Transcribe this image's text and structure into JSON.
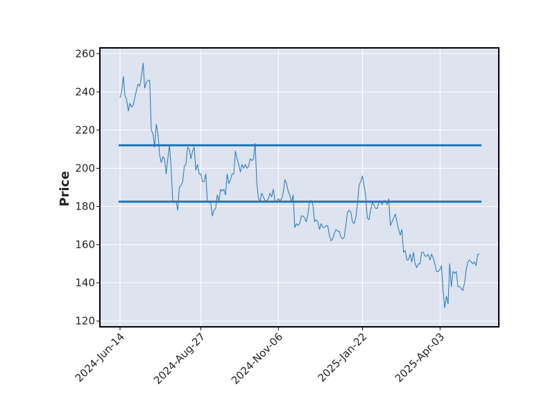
{
  "chart_data": {
    "type": "line",
    "title": "",
    "xlabel": "",
    "ylabel": "Price",
    "x_tick_labels": [
      "2024-Jun-14",
      "2024-Aug-27",
      "2024-Nov-06",
      "2025-Jan-22",
      "2025-Apr-03"
    ],
    "y_ticks": [
      120,
      140,
      160,
      180,
      200,
      220,
      240,
      260
    ],
    "ylim": [
      117,
      263
    ],
    "grid": true,
    "legend": "none",
    "colors": {
      "background": "#dde3ef",
      "grid": "#ffffff",
      "line": "#1f77b4",
      "frame": "#000000"
    },
    "series": [
      {
        "values": [
          237,
          240,
          248,
          238,
          236,
          230,
          234,
          232,
          233,
          237,
          241,
          244,
          243,
          248,
          255,
          242,
          245,
          246,
          246,
          220,
          218,
          211,
          223,
          218,
          207,
          203,
          206,
          205,
          197,
          205,
          212,
          200,
          183,
          182,
          183,
          178,
          190,
          191,
          193,
          201,
          202,
          211,
          210,
          205,
          209,
          211,
          199,
          202,
          197,
          197,
          193,
          193,
          197,
          183,
          182,
          182,
          175,
          178,
          179,
          186,
          183,
          189,
          188,
          189,
          186,
          197,
          192,
          194,
          197,
          197,
          209,
          205,
          202,
          198,
          202,
          200,
          202,
          200,
          201,
          205,
          204,
          205,
          213,
          192,
          184,
          183,
          187,
          185,
          183,
          183,
          184,
          187,
          185,
          189,
          183,
          182,
          184,
          183,
          184,
          187,
          194,
          192,
          188,
          186,
          182,
          186,
          169,
          171,
          170,
          171,
          175,
          175,
          174,
          172,
          176,
          183,
          183,
          181,
          172,
          173,
          172,
          168,
          171,
          169,
          169,
          170,
          170,
          165,
          162,
          163,
          166,
          168,
          167,
          167,
          164,
          163,
          164,
          170,
          177,
          178,
          177,
          172,
          171,
          174,
          181,
          191,
          193,
          196,
          191,
          186,
          174,
          173,
          178,
          182,
          181,
          179,
          179,
          182,
          183,
          181,
          183,
          183,
          181,
          184,
          170,
          172,
          174,
          176,
          172,
          168,
          165,
          168,
          156,
          157,
          152,
          152,
          155,
          151,
          156,
          150,
          148,
          150,
          150,
          156,
          156,
          154,
          154,
          155,
          152,
          155,
          153,
          150,
          146,
          146,
          147,
          149,
          136,
          127,
          133,
          129,
          150,
          138,
          146,
          145,
          146,
          138,
          138,
          137,
          136,
          140,
          147,
          151,
          152,
          151,
          150,
          151,
          149,
          155,
          155
        ],
        "start_date": "2024-06-14",
        "end_date": "2025-05-09"
      }
    ],
    "hlines": [
      212,
      182.5
    ]
  }
}
